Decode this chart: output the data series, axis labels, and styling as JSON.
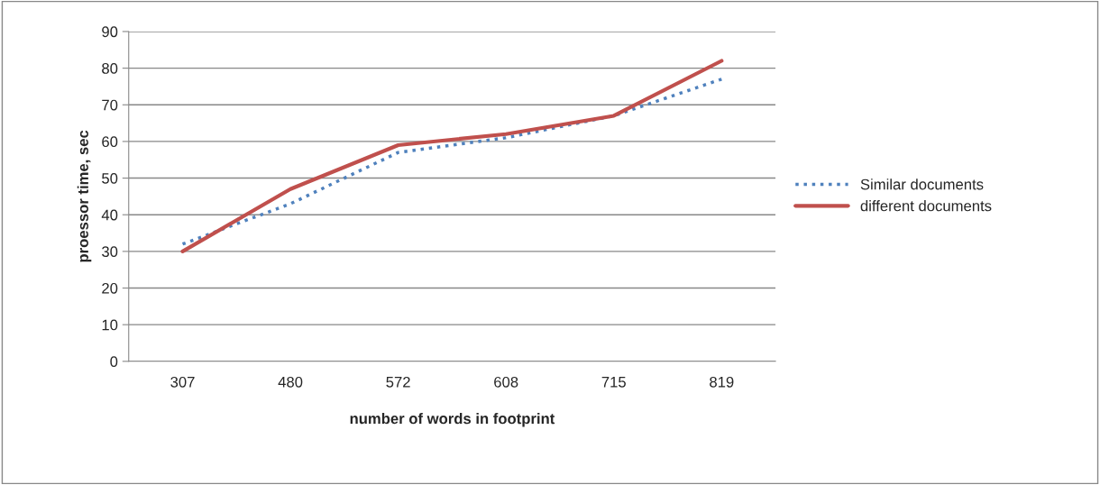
{
  "chart_data": {
    "type": "line",
    "xlabel": "number of words in footprint",
    "ylabel": "proessor time, sec",
    "categories": [
      "307",
      "480",
      "572",
      "608",
      "715",
      "819"
    ],
    "series": [
      {
        "name": "Similar documents",
        "color": "#4f81bd",
        "line_style": "dotted",
        "values": [
          32,
          43,
          57,
          61,
          67,
          77
        ]
      },
      {
        "name": "different documents",
        "color": "#c0504d",
        "line_style": "solid",
        "values": [
          30,
          47,
          59,
          62,
          67,
          82
        ]
      }
    ],
    "ylim": [
      0,
      90
    ],
    "yticks": [
      0,
      10,
      20,
      30,
      40,
      50,
      60,
      70,
      80,
      90
    ],
    "grid": "y",
    "legend": "right",
    "marker": "none"
  }
}
